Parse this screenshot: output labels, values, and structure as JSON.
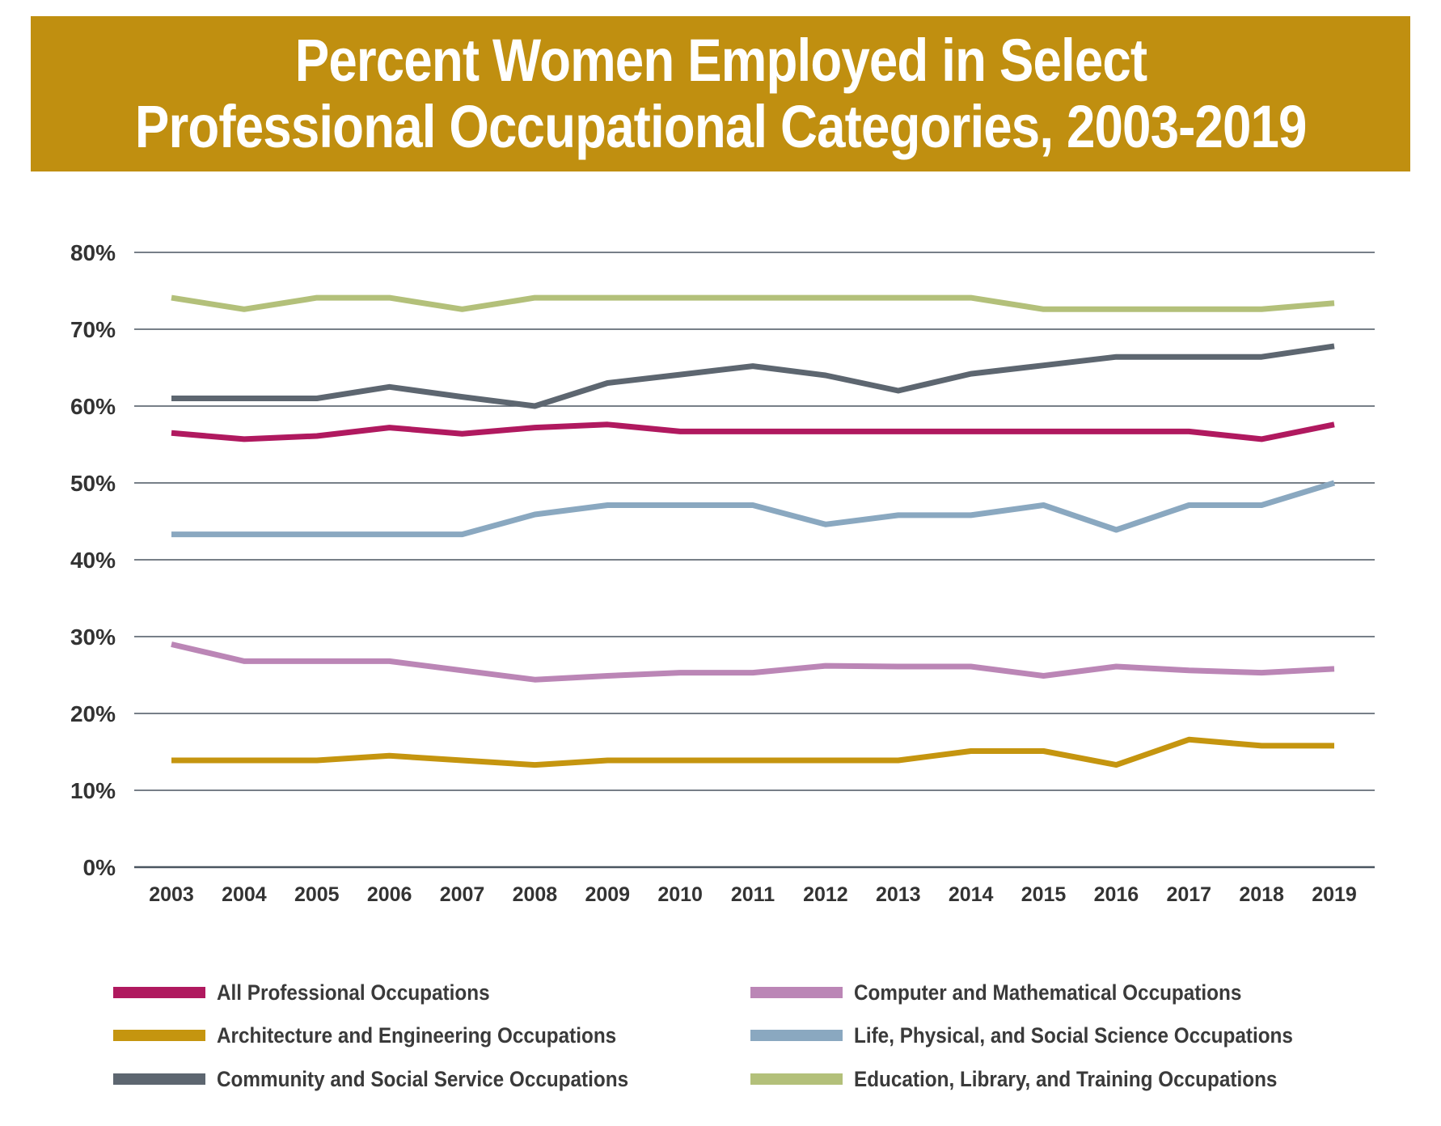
{
  "colors": {
    "banner": "#c08f10",
    "grid": "#4a5560",
    "tick_text": "#333333"
  },
  "title": {
    "line1": "Percent Women Employed in Select",
    "line2": "Professional Occupational Categories, 2003-2019"
  },
  "chart_data": {
    "type": "line",
    "title": "Percent Women Employed in Select Professional Occupational Categories, 2003-2019",
    "xlabel": "",
    "ylabel": "",
    "ylim": [
      0,
      80
    ],
    "yticks": [
      "0%",
      "10%",
      "20%",
      "30%",
      "40%",
      "50%",
      "60%",
      "70%",
      "80%"
    ],
    "grid": true,
    "legend_position": "bottom",
    "x": [
      "2003",
      "2004",
      "2005",
      "2006",
      "2007",
      "2008",
      "2009",
      "2010",
      "2011",
      "2012",
      "2013",
      "2014",
      "2015",
      "2016",
      "2017",
      "2018",
      "2019"
    ],
    "series": [
      {
        "name": "All Professional Occupations",
        "color": "#b0195f",
        "values": [
          56.5,
          55.7,
          56.1,
          57.2,
          56.4,
          57.2,
          57.6,
          56.7,
          56.7,
          56.7,
          56.7,
          56.7,
          56.7,
          56.7,
          56.7,
          55.7,
          57.6
        ]
      },
      {
        "name": "Architecture and Engineering Occupations",
        "color": "#c5950f",
        "values": [
          13.9,
          13.9,
          13.9,
          14.5,
          13.9,
          13.3,
          13.9,
          13.9,
          13.9,
          13.9,
          13.9,
          15.1,
          15.1,
          13.3,
          16.6,
          15.8,
          15.8
        ]
      },
      {
        "name": "Community and Social Service Occupations",
        "color": "#5d6670",
        "values": [
          61.0,
          61.0,
          61.0,
          62.5,
          61.2,
          60.0,
          63.0,
          64.1,
          65.2,
          64.0,
          62.0,
          64.2,
          65.3,
          66.4,
          66.4,
          66.4,
          67.8
        ]
      },
      {
        "name": "Computer and Mathematical Occupations",
        "color": "#bb86b6",
        "values": [
          29.0,
          26.8,
          26.8,
          26.8,
          25.6,
          24.4,
          24.9,
          25.3,
          25.3,
          26.2,
          26.1,
          26.1,
          24.9,
          26.1,
          25.6,
          25.3,
          25.8
        ]
      },
      {
        "name": "Life, Physical, and Social Science Occupations",
        "color": "#8aa8c0",
        "values": [
          43.3,
          43.3,
          43.3,
          43.3,
          43.3,
          45.9,
          47.1,
          47.1,
          47.1,
          44.6,
          45.8,
          45.8,
          47.1,
          43.9,
          47.1,
          47.1,
          50.0
        ]
      },
      {
        "name": "Education, Library, and Training Occupations",
        "color": "#b3c07a",
        "values": [
          74.1,
          72.6,
          74.1,
          74.1,
          72.6,
          74.1,
          74.1,
          74.1,
          74.1,
          74.1,
          74.1,
          74.1,
          72.6,
          72.6,
          72.6,
          72.6,
          73.4
        ]
      }
    ]
  },
  "legend": {
    "items": [
      {
        "label": "All Professional Occupations",
        "color": "#b0195f"
      },
      {
        "label": "Architecture and Engineering Occupations",
        "color": "#c5950f"
      },
      {
        "label": "Community and Social Service Occupations",
        "color": "#5d6670"
      },
      {
        "label": "Computer and Mathematical Occupations",
        "color": "#bb86b6"
      },
      {
        "label": "Life, Physical, and Social Science Occupations",
        "color": "#8aa8c0"
      },
      {
        "label": "Education, Library, and Training Occupations",
        "color": "#b3c07a"
      }
    ]
  }
}
